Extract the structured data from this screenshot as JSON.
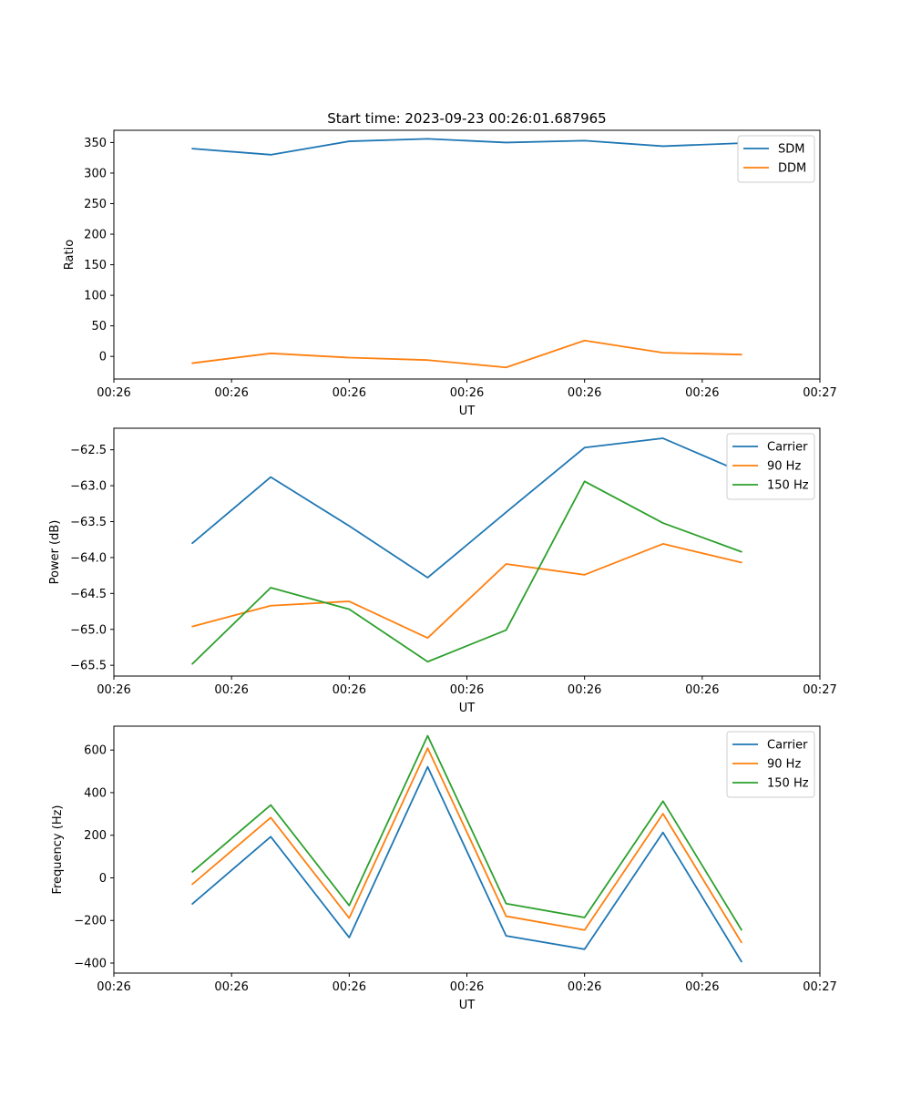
{
  "chart_data": [
    {
      "type": "line",
      "title": "Start time: 2023-09-23 00:26:01.687965",
      "xlabel": "UT",
      "ylabel": "Ratio",
      "x": [
        1,
        2,
        3,
        4,
        5,
        6,
        7,
        8
      ],
      "xlim": [
        0,
        9
      ],
      "xticks": [
        0,
        1.5,
        3,
        4.5,
        6,
        7.5,
        9
      ],
      "xticklabels": [
        "00:26",
        "00:26",
        "00:26",
        "00:26",
        "00:26",
        "00:26",
        "00:27"
      ],
      "ylim": [
        -37,
        370
      ],
      "yticks": [
        0,
        50,
        100,
        150,
        200,
        250,
        300,
        350
      ],
      "yticklabels": [
        "0",
        "50",
        "100",
        "150",
        "200",
        "250",
        "300",
        "350"
      ],
      "legend": "top-right",
      "series": [
        {
          "name": "SDM",
          "color": "#1f77b4",
          "values": [
            340,
            330,
            352,
            356,
            350,
            353,
            344,
            349
          ]
        },
        {
          "name": "DDM",
          "color": "#ff7f0e",
          "values": [
            -11,
            5,
            -2,
            -6,
            -18,
            26,
            6,
            3
          ]
        }
      ]
    },
    {
      "type": "line",
      "title": "",
      "xlabel": "UT",
      "ylabel": "Power (dB)",
      "x": [
        1,
        2,
        3,
        4,
        5,
        6,
        7,
        8
      ],
      "xlim": [
        0,
        9
      ],
      "xticks": [
        0,
        1.5,
        3,
        4.5,
        6,
        7.5,
        9
      ],
      "xticklabels": [
        "00:26",
        "00:26",
        "00:26",
        "00:26",
        "00:26",
        "00:26",
        "00:27"
      ],
      "ylim": [
        -65.65,
        -62.2
      ],
      "yticks": [
        -65.5,
        -65.0,
        -64.5,
        -64.0,
        -63.5,
        -63.0,
        -62.5
      ],
      "yticklabels": [
        "−65.5",
        "−65.0",
        "−64.5",
        "−64.0",
        "−63.5",
        "−63.0",
        "−62.5"
      ],
      "legend": "top-right",
      "series": [
        {
          "name": "Carrier",
          "color": "#1f77b4",
          "values": [
            -63.8,
            -62.88,
            -63.56,
            -64.28,
            -63.37,
            -62.47,
            -62.34,
            -62.81
          ]
        },
        {
          "name": "90 Hz",
          "color": "#ff7f0e",
          "values": [
            -64.96,
            -64.67,
            -64.61,
            -65.12,
            -64.09,
            -64.24,
            -63.81,
            -64.07
          ]
        },
        {
          "name": "150 Hz",
          "color": "#2ca02c",
          "values": [
            -65.48,
            -64.42,
            -64.72,
            -65.45,
            -65.01,
            -62.94,
            -63.52,
            -63.92
          ]
        }
      ]
    },
    {
      "type": "line",
      "title": "",
      "xlabel": "UT",
      "ylabel": "Frequency (Hz)",
      "x": [
        1,
        2,
        3,
        4,
        5,
        6,
        7,
        8
      ],
      "xlim": [
        0,
        9
      ],
      "xticks": [
        0,
        1.5,
        3,
        4.5,
        6,
        7.5,
        9
      ],
      "xticklabels": [
        "00:26",
        "00:26",
        "00:26",
        "00:26",
        "00:26",
        "00:26",
        "00:27"
      ],
      "ylim": [
        -447,
        712
      ],
      "yticks": [
        -400,
        -200,
        0,
        200,
        400,
        600
      ],
      "yticklabels": [
        "−400",
        "−200",
        "0",
        "200",
        "400",
        "600"
      ],
      "legend": "top-right",
      "series": [
        {
          "name": "Carrier",
          "color": "#1f77b4",
          "values": [
            -122,
            193,
            -280,
            521,
            -272,
            -335,
            213,
            -393
          ]
        },
        {
          "name": "90 Hz",
          "color": "#ff7f0e",
          "values": [
            -30,
            283,
            -189,
            609,
            -180,
            -245,
            301,
            -303
          ]
        },
        {
          "name": "150 Hz",
          "color": "#2ca02c",
          "values": [
            28,
            342,
            -130,
            667,
            -121,
            -186,
            360,
            -244
          ]
        }
      ]
    }
  ]
}
